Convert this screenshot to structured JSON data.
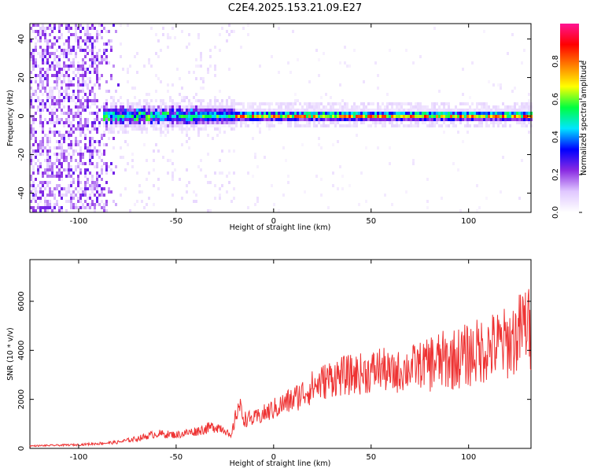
{
  "title": "C2E4.2025.153.21.09.E27",
  "chart_data": [
    {
      "type": "heatmap",
      "xlabel": "Height of straight line (km)",
      "ylabel": "Frequency (Hz)",
      "xlim": [
        -125,
        132
      ],
      "ylim": [
        -50,
        48
      ],
      "xticks": [
        -100,
        -50,
        0,
        50,
        100
      ],
      "yticks": [
        -40,
        -20,
        0,
        20,
        40
      ],
      "colorbar": {
        "label": "Normalized spectral amplitude",
        "range": [
          0,
          1
        ],
        "ticks": [
          0.0,
          0.2,
          0.4,
          0.6,
          0.8
        ],
        "tick_labels": [
          "0.0",
          "0.2",
          "0.4",
          "0.6",
          "0.8"
        ],
        "colormap": [
          "#ffffff",
          "#e0c8ff",
          "#8a2be2",
          "#0000ff",
          "#00e5ff",
          "#00ff40",
          "#ffff00",
          "#ff8000",
          "#ff0000",
          "#ff1493"
        ]
      },
      "features": [
        {
          "name": "broadband noise",
          "x_range": [
            -125,
            -80
          ],
          "freq_range": [
            -50,
            48
          ],
          "amplitude": 0.1
        },
        {
          "name": "narrowband signal",
          "x_range": [
            -88,
            132
          ],
          "center_freq_hz": 1,
          "amplitude_peak": 0.9
        }
      ]
    },
    {
      "type": "line",
      "xlabel": "Height of straight line (km)",
      "ylabel": "SNR (10 * v/v)",
      "xlim": [
        -125,
        132
      ],
      "ylim": [
        0,
        7700
      ],
      "xticks": [
        -100,
        -50,
        0,
        50,
        100
      ],
      "yticks": [
        0,
        2000,
        4000,
        6000
      ],
      "color": "#ee3333",
      "x": [
        -125,
        -100,
        -80,
        -70,
        -60,
        -50,
        -40,
        -30,
        -25,
        -22,
        -18,
        -15,
        -10,
        0,
        10,
        20,
        25,
        30,
        40,
        50,
        55,
        60,
        70,
        80,
        90,
        100,
        110,
        120,
        125,
        130,
        132
      ],
      "y": [
        100,
        150,
        250,
        400,
        600,
        550,
        700,
        900,
        800,
        400,
        1800,
        1200,
        1200,
        1600,
        2000,
        2500,
        2700,
        2900,
        3000,
        3100,
        3300,
        3000,
        3300,
        3500,
        3600,
        3800,
        4100,
        4300,
        4600,
        5200,
        4500
      ]
    }
  ]
}
